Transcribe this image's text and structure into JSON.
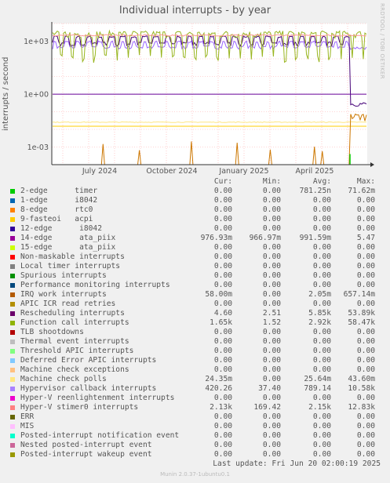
{
  "title": "Individual interrupts - by year",
  "side_label": "RRDTOOL / TOBI OETIKER",
  "chart_data": {
    "type": "line",
    "title": "Individual interrupts - by year",
    "ylabel": "interrupts / second",
    "y_scale": "log",
    "ylim": [
      0.0001,
      10000
    ],
    "y_ticks": [
      {
        "value": 1000,
        "label": "1e+03"
      },
      {
        "value": 1,
        "label": "1e+00"
      },
      {
        "value": 0.001,
        "label": "1e-03"
      }
    ],
    "x_ticks": [
      "July 2024",
      "October 2024",
      "January 2025",
      "April 2025"
    ],
    "grid": true,
    "series": [
      {
        "name": "Hypervisor callback interrupts",
        "color": "#9966ff",
        "avg": 789.14,
        "current": 420.26
      },
      {
        "name": "12-edge i8042",
        "color": "#440077",
        "avg": 0,
        "current": 0
      },
      {
        "name": "Function call interrupts",
        "color": "#99b51f",
        "avg": 2920,
        "current": 1650
      },
      {
        "name": "Hyper-V stimer0 interrupts",
        "color": "#ff9999",
        "avg": 2150,
        "current": 2130
      },
      {
        "name": "14-edge ata_piix",
        "color": "#660099",
        "avg": 0.99159,
        "current": 0.97693
      },
      {
        "name": "9-fasteoi acpi",
        "color": "#ffcc00",
        "avg": 0,
        "current": 0
      },
      {
        "name": "Machine check polls",
        "color": "#ffe680",
        "avg": 0.02564,
        "current": 0.02435
      },
      {
        "name": "IRQ work interrupts",
        "color": "#cc7700",
        "avg": 0.00205,
        "current": 0.058
      }
    ]
  },
  "legend": {
    "headers": {
      "cur": "Cur:",
      "min": "Min:",
      "avg": "Avg:",
      "max": "Max:"
    },
    "rows": [
      {
        "label": "2-edge      timer",
        "color": "#00cc00",
        "cur": "0.00",
        "min": "0.00",
        "avg": "781.25n",
        "max": "71.62m"
      },
      {
        "label": "1-edge      i8042",
        "color": "#0066b3",
        "cur": "0.00",
        "min": "0.00",
        "avg": "0.00",
        "max": "0.00"
      },
      {
        "label": "8-edge      rtc0",
        "color": "#ff8000",
        "cur": "0.00",
        "min": "0.00",
        "avg": "0.00",
        "max": "0.00"
      },
      {
        "label": "9-fasteoi   acpi",
        "color": "#ffcc00",
        "cur": "0.00",
        "min": "0.00",
        "avg": "0.00",
        "max": "0.00"
      },
      {
        "label": "12-edge      i8042",
        "color": "#330099",
        "cur": "0.00",
        "min": "0.00",
        "avg": "0.00",
        "max": "0.00"
      },
      {
        "label": "14-edge      ata_piix",
        "color": "#990099",
        "cur": "976.93m",
        "min": "966.97m",
        "avg": "991.59m",
        "max": "5.47"
      },
      {
        "label": "15-edge      ata_piix",
        "color": "#ccff00",
        "cur": "0.00",
        "min": "0.00",
        "avg": "0.00",
        "max": "0.00"
      },
      {
        "label": "Non-maskable interrupts",
        "color": "#ff0000",
        "cur": "0.00",
        "min": "0.00",
        "avg": "0.00",
        "max": "0.00"
      },
      {
        "label": "Local timer interrupts",
        "color": "#808080",
        "cur": "0.00",
        "min": "0.00",
        "avg": "0.00",
        "max": "0.00"
      },
      {
        "label": "Spurious interrupts",
        "color": "#008f00",
        "cur": "0.00",
        "min": "0.00",
        "avg": "0.00",
        "max": "0.00"
      },
      {
        "label": "Performance monitoring interrupts",
        "color": "#00487d",
        "cur": "0.00",
        "min": "0.00",
        "avg": "0.00",
        "max": "0.00"
      },
      {
        "label": "IRQ work interrupts",
        "color": "#b35a00",
        "cur": "58.00m",
        "min": "0.00",
        "avg": "2.05m",
        "max": "657.14m"
      },
      {
        "label": "APIC ICR read retries",
        "color": "#b38f00",
        "cur": "0.00",
        "min": "0.00",
        "avg": "0.00",
        "max": "0.00"
      },
      {
        "label": "Rescheduling interrupts",
        "color": "#6b006b",
        "cur": "4.60",
        "min": "2.51",
        "avg": "5.85k",
        "max": "53.89k"
      },
      {
        "label": "Function call interrupts",
        "color": "#8fb300",
        "cur": "1.65k",
        "min": "1.52",
        "avg": "2.92k",
        "max": "58.47k"
      },
      {
        "label": "TLB shootdowns",
        "color": "#b30000",
        "cur": "0.00",
        "min": "0.00",
        "avg": "0.00",
        "max": "0.00"
      },
      {
        "label": "Thermal event interrupts",
        "color": "#bebebe",
        "cur": "0.00",
        "min": "0.00",
        "avg": "0.00",
        "max": "0.00"
      },
      {
        "label": "Threshold APIC interrupts",
        "color": "#80ff80",
        "cur": "0.00",
        "min": "0.00",
        "avg": "0.00",
        "max": "0.00"
      },
      {
        "label": "Deferred Error APIC interrupts",
        "color": "#80c9ff",
        "cur": "0.00",
        "min": "0.00",
        "avg": "0.00",
        "max": "0.00"
      },
      {
        "label": "Machine check exceptions",
        "color": "#ffc080",
        "cur": "0.00",
        "min": "0.00",
        "avg": "0.00",
        "max": "0.00"
      },
      {
        "label": "Machine check polls",
        "color": "#ffe680",
        "cur": "24.35m",
        "min": "0.00",
        "avg": "25.64m",
        "max": "43.60m"
      },
      {
        "label": "Hypervisor callback interrupts",
        "color": "#aa80ff",
        "cur": "420.26",
        "min": "37.40",
        "avg": "789.14",
        "max": "10.58k"
      },
      {
        "label": "Hyper-V reenlightenment interrupts",
        "color": "#ee00cc",
        "cur": "0.00",
        "min": "0.00",
        "avg": "0.00",
        "max": "0.00"
      },
      {
        "label": "Hyper-V stimer0 interrupts",
        "color": "#ff8080",
        "cur": "2.13k",
        "min": "169.42",
        "avg": "2.15k",
        "max": "12.83k"
      },
      {
        "label": "ERR",
        "color": "#666600",
        "cur": "0.00",
        "min": "0.00",
        "avg": "0.00",
        "max": "0.00"
      },
      {
        "label": "MIS",
        "color": "#ffbfff",
        "cur": "0.00",
        "min": "0.00",
        "avg": "0.00",
        "max": "0.00"
      },
      {
        "label": "Posted-interrupt notification event",
        "color": "#00ffcc",
        "cur": "0.00",
        "min": "0.00",
        "avg": "0.00",
        "max": "0.00"
      },
      {
        "label": "Nested posted-interrupt event",
        "color": "#cc6699",
        "cur": "0.00",
        "min": "0.00",
        "avg": "0.00",
        "max": "0.00"
      },
      {
        "label": "Posted-interrupt wakeup event",
        "color": "#999900",
        "cur": "0.00",
        "min": "0.00",
        "avg": "0.00",
        "max": "0.00"
      }
    ]
  },
  "last_update": "Last update: Fri Jun 20 02:00:19 2025",
  "footer": "Munin 2.0.37-1ubuntu0.1"
}
